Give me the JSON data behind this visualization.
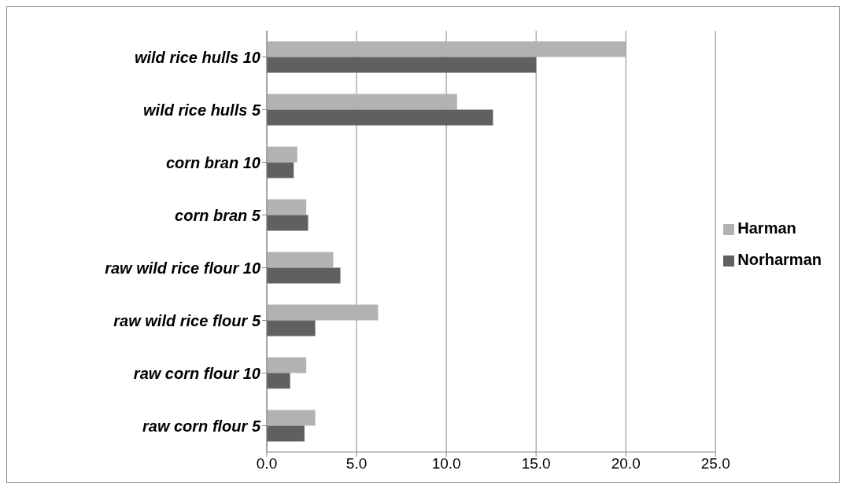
{
  "chart_data": {
    "type": "bar",
    "orientation": "horizontal",
    "categories": [
      "wild rice hulls 10",
      "wild rice hulls 5",
      "corn bran 10",
      "corn bran 5",
      "raw wild rice flour 10",
      "raw wild rice flour 5",
      "raw corn flour 10",
      "raw corn flour 5"
    ],
    "series": [
      {
        "name": "Harman",
        "color": "#b2b2b2",
        "values": [
          20.0,
          10.6,
          1.7,
          2.2,
          3.7,
          6.2,
          2.2,
          2.7
        ]
      },
      {
        "name": "Norharman",
        "color": "#606060",
        "values": [
          15.0,
          12.6,
          1.5,
          2.3,
          4.1,
          2.7,
          1.3,
          2.1
        ]
      }
    ],
    "xlim": [
      0,
      25
    ],
    "xticks": [
      {
        "value": 0,
        "label": "0.0"
      },
      {
        "value": 5,
        "label": "5.0"
      },
      {
        "value": 10,
        "label": "10.0"
      },
      {
        "value": 15,
        "label": "15.0"
      },
      {
        "value": 20,
        "label": "20.0"
      },
      {
        "value": 25,
        "label": "25.0"
      }
    ],
    "grid": "x",
    "legend": "right"
  }
}
